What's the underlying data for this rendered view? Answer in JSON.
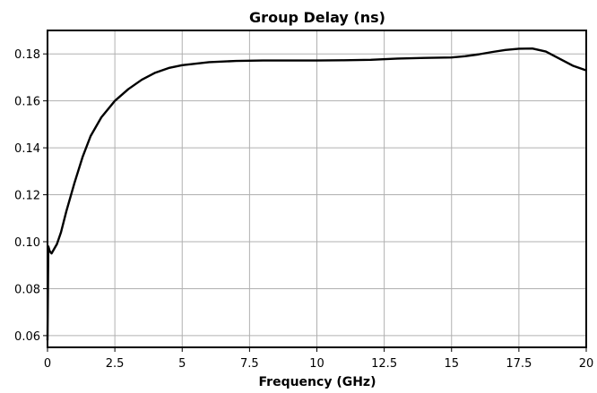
{
  "chart_data": {
    "type": "line",
    "title": "Group Delay (ns)",
    "xlabel": "Frequency (GHz)",
    "ylabel": "",
    "xlim": [
      0,
      20
    ],
    "ylim": [
      0.055,
      0.19
    ],
    "xticks": [
      0,
      2.5,
      5,
      7.5,
      10,
      12.5,
      15,
      17.5,
      20
    ],
    "xtick_labels": [
      "0",
      "2.5",
      "5",
      "7.5",
      "10",
      "12.5",
      "15",
      "17.5",
      "20"
    ],
    "yticks": [
      0.06,
      0.08,
      0.1,
      0.12,
      0.14,
      0.16,
      0.18
    ],
    "ytick_labels": [
      "0.06",
      "0.08",
      "0.10",
      "0.12",
      "0.14",
      "0.16",
      "0.18"
    ],
    "grid": true,
    "line_color": "#000000",
    "series": [
      {
        "x": [
          0,
          0.03,
          0.08,
          0.15,
          0.25,
          0.35,
          0.5,
          0.7,
          1.0,
          1.3,
          1.6,
          2.0,
          2.5,
          3.0,
          3.5,
          4.0,
          4.5,
          5.0,
          6.0,
          7.0,
          8.0,
          9.0,
          10.0,
          11.0,
          12.0,
          13.0,
          14.0,
          15.0,
          15.5,
          16.0,
          16.5,
          17.0,
          17.5,
          18.0,
          18.5,
          19.0,
          19.5,
          20.0
        ],
        "y": [
          0.058,
          0.098,
          0.096,
          0.095,
          0.097,
          0.099,
          0.104,
          0.113,
          0.125,
          0.136,
          0.145,
          0.153,
          0.16,
          0.165,
          0.169,
          0.172,
          0.174,
          0.1752,
          0.1765,
          0.177,
          0.1772,
          0.1772,
          0.1772,
          0.1773,
          0.1775,
          0.178,
          0.1783,
          0.1785,
          0.179,
          0.1798,
          0.1808,
          0.1817,
          0.1822,
          0.1823,
          0.181,
          0.178,
          0.175,
          0.173
        ]
      }
    ]
  }
}
